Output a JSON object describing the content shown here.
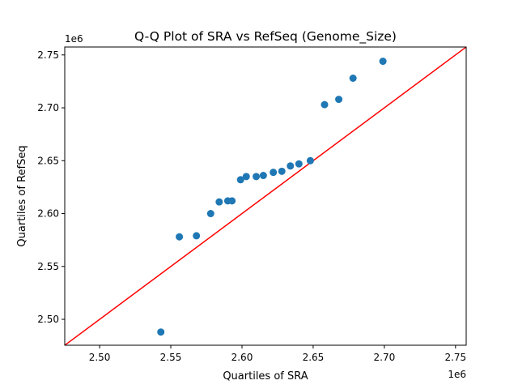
{
  "chart_data": {
    "type": "scatter",
    "title": "Q-Q Plot of SRA vs RefSeq (Genome_Size)",
    "xlabel": "Quartiles of SRA",
    "ylabel": "Quartiles of RefSeq",
    "x_offset_label": "1e6",
    "y_offset_label": "1e6",
    "xlim": [
      2.4755,
      2.7575
    ],
    "ylim": [
      2.4755,
      2.7575
    ],
    "x_ticks": [
      2.5,
      2.55,
      2.6,
      2.65,
      2.7,
      2.75
    ],
    "y_ticks": [
      2.5,
      2.55,
      2.6,
      2.65,
      2.7,
      2.75
    ],
    "x_tick_labels": [
      "2.50",
      "2.55",
      "2.60",
      "2.65",
      "2.70",
      "2.75"
    ],
    "y_tick_labels": [
      "2.50",
      "2.55",
      "2.60",
      "2.65",
      "2.70",
      "2.75"
    ],
    "grid": false,
    "points": [
      {
        "x": 2.543,
        "y": 2.488
      },
      {
        "x": 2.556,
        "y": 2.578
      },
      {
        "x": 2.568,
        "y": 2.579
      },
      {
        "x": 2.578,
        "y": 2.6
      },
      {
        "x": 2.584,
        "y": 2.611
      },
      {
        "x": 2.59,
        "y": 2.612
      },
      {
        "x": 2.593,
        "y": 2.612
      },
      {
        "x": 2.599,
        "y": 2.632
      },
      {
        "x": 2.603,
        "y": 2.635
      },
      {
        "x": 2.61,
        "y": 2.635
      },
      {
        "x": 2.615,
        "y": 2.636
      },
      {
        "x": 2.622,
        "y": 2.639
      },
      {
        "x": 2.628,
        "y": 2.64
      },
      {
        "x": 2.634,
        "y": 2.645
      },
      {
        "x": 2.64,
        "y": 2.647
      },
      {
        "x": 2.648,
        "y": 2.65
      },
      {
        "x": 2.658,
        "y": 2.703
      },
      {
        "x": 2.668,
        "y": 2.708
      },
      {
        "x": 2.678,
        "y": 2.728
      },
      {
        "x": 2.699,
        "y": 2.744
      }
    ],
    "reference_line": {
      "slope": 1,
      "intercept": 0
    },
    "colors": {
      "points": "#1f77b4",
      "reference_line": "#ff0000"
    }
  }
}
